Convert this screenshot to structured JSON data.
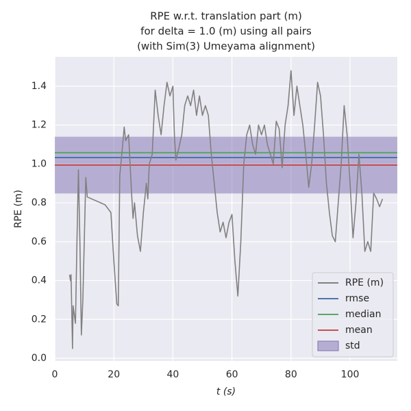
{
  "chart_data": {
    "type": "line",
    "title": [
      "RPE w.r.t. translation part (m)",
      "for delta = 1.0 (m) using all pairs",
      "(with Sim(3) Umeyama alignment)"
    ],
    "xlabel": "t (s)",
    "ylabel": "RPE (m)",
    "x": [
      5,
      5.3,
      5.5,
      6,
      6.2,
      7,
      7.5,
      8,
      8.5,
      9,
      9.5,
      10.5,
      11,
      17,
      19,
      20,
      21,
      21.5,
      22,
      23,
      23.5,
      24,
      25,
      26,
      26.5,
      27,
      28,
      29,
      30,
      31,
      31.5,
      32,
      33,
      34,
      35,
      36,
      37,
      38,
      39,
      40,
      40.5,
      41,
      42,
      43,
      44,
      45,
      46,
      47,
      48,
      49,
      50,
      51,
      52,
      53,
      54,
      55,
      56,
      57,
      58,
      59,
      60,
      61,
      62,
      63,
      64,
      65,
      66,
      67,
      68,
      69,
      70,
      71,
      72,
      73,
      74,
      75,
      76,
      77,
      78,
      79,
      80,
      81,
      82,
      83,
      84,
      85,
      86,
      87,
      88,
      89,
      90,
      91,
      92,
      93,
      94,
      95,
      96,
      97,
      98,
      99,
      100,
      101,
      102,
      103,
      104,
      105,
      106,
      107,
      108,
      109,
      110,
      111
    ],
    "series": [
      {
        "name": "RPE (m)",
        "color": "#808080",
        "values": [
          0.43,
          0.4,
          0.43,
          0.05,
          0.27,
          0.18,
          0.6,
          0.97,
          0.6,
          0.12,
          0.3,
          0.93,
          0.83,
          0.79,
          0.75,
          0.5,
          0.28,
          0.27,
          0.94,
          1.1,
          1.19,
          1.12,
          1.15,
          0.85,
          0.72,
          0.8,
          0.63,
          0.55,
          0.75,
          0.9,
          0.82,
          1.0,
          1.05,
          1.38,
          1.25,
          1.15,
          1.3,
          1.42,
          1.35,
          1.4,
          1.15,
          1.02,
          1.08,
          1.15,
          1.3,
          1.35,
          1.3,
          1.38,
          1.25,
          1.35,
          1.25,
          1.3,
          1.25,
          1.05,
          0.9,
          0.75,
          0.65,
          0.7,
          0.62,
          0.7,
          0.74,
          0.5,
          0.32,
          0.6,
          1.0,
          1.15,
          1.2,
          1.1,
          1.05,
          1.2,
          1.15,
          1.2,
          1.1,
          1.05,
          1.0,
          1.22,
          1.18,
          0.98,
          1.2,
          1.3,
          1.48,
          1.25,
          1.4,
          1.3,
          1.2,
          1.05,
          0.88,
          1.0,
          1.2,
          1.42,
          1.35,
          1.15,
          0.9,
          0.75,
          0.63,
          0.6,
          0.8,
          1.0,
          1.3,
          1.15,
          0.9,
          0.62,
          0.8,
          1.05,
          0.85,
          0.55,
          0.6,
          0.55,
          0.85,
          0.82,
          0.78,
          0.82
        ]
      }
    ],
    "reference_lines": [
      {
        "name": "rmse",
        "color": "#4c72b0",
        "value": 1.033
      },
      {
        "name": "median",
        "color": "#55a868",
        "value": 1.058
      },
      {
        "name": "mean",
        "color": "#c44e52",
        "value": 0.994
      }
    ],
    "std_band": {
      "name": "std",
      "color": "#8172b2",
      "value": 0.146
    },
    "xlim": [
      0,
      116
    ],
    "ylim": [
      -0.014,
      1.551
    ],
    "xticks": [
      0,
      20,
      40,
      60,
      80,
      100
    ],
    "yticks": [
      {
        "value": 0,
        "label": "0.0"
      },
      0.2,
      0.4,
      0.6,
      0.8,
      {
        "value": 1,
        "label": "1.0"
      },
      1.2,
      1.4
    ],
    "grid": true,
    "legend": "lower right"
  }
}
